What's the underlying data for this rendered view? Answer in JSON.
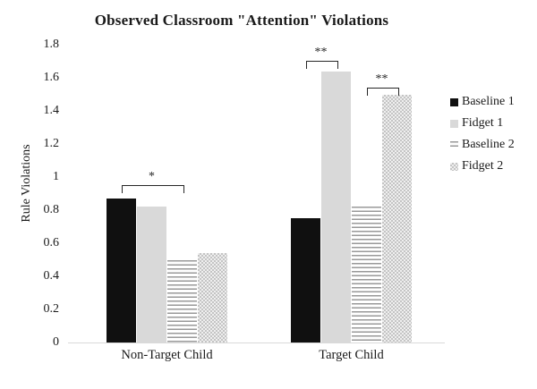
{
  "chart_data": {
    "type": "bar",
    "title": "Observed Classroom \"Attention\" Violations",
    "xlabel": "",
    "ylabel": "Rule Violations",
    "ylim": [
      0,
      1.8
    ],
    "grid": false,
    "legend_position": "right",
    "categories": [
      "Non-Target Child",
      "Target Child"
    ],
    "series": [
      {
        "name": "Baseline 1",
        "pattern": "solid-black",
        "values": [
          0.87,
          0.75
        ]
      },
      {
        "name": "Fidget 1",
        "pattern": "solid-gray",
        "values": [
          0.82,
          1.64
        ]
      },
      {
        "name": "Baseline 2",
        "pattern": "hlines",
        "values": [
          0.5,
          0.82
        ]
      },
      {
        "name": "Fidget 2",
        "pattern": "checker",
        "values": [
          0.54,
          1.5
        ]
      }
    ],
    "ytick_labels": [
      "0",
      "0.2",
      "0.4",
      "0.6",
      "0.8",
      "1",
      "1.2",
      "1.4",
      "1.6",
      "1.8"
    ],
    "annotations": [
      {
        "label": "*",
        "category": "Non-Target Child",
        "between": [
          "Baseline 1",
          "Baseline 2"
        ]
      },
      {
        "label": "**",
        "category": "Target Child",
        "between": [
          "Baseline 1",
          "Fidget 1"
        ]
      },
      {
        "label": "**",
        "category": "Target Child",
        "between": [
          "Baseline 2",
          "Fidget 2"
        ]
      }
    ],
    "colors": {
      "bar_black": "#101010",
      "bar_gray": "#d9d9d9",
      "pattern_line_gray": "#999999",
      "checker_gray": "#c4c4c4",
      "axis_line": "#d9d9d9",
      "text": "#1a1a1a"
    }
  }
}
